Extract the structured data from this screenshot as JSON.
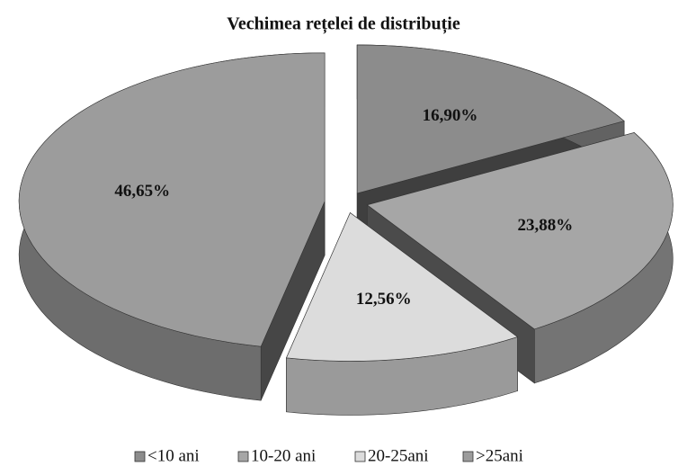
{
  "chart_data": {
    "type": "pie",
    "title": "Vechimea rețelei de distribuție",
    "categories": [
      "<10 ani",
      "10-20 ani",
      "20-25ani",
      ">25ani"
    ],
    "values": [
      16.9,
      23.88,
      12.56,
      46.65
    ],
    "value_labels": [
      "16,90%",
      "23,88%",
      "12,56%",
      "46,65%"
    ],
    "colors": [
      "#8c8c8c",
      "#a6a6a6",
      "#dcdcdc",
      "#9c9c9c"
    ],
    "legend": "bottom"
  }
}
